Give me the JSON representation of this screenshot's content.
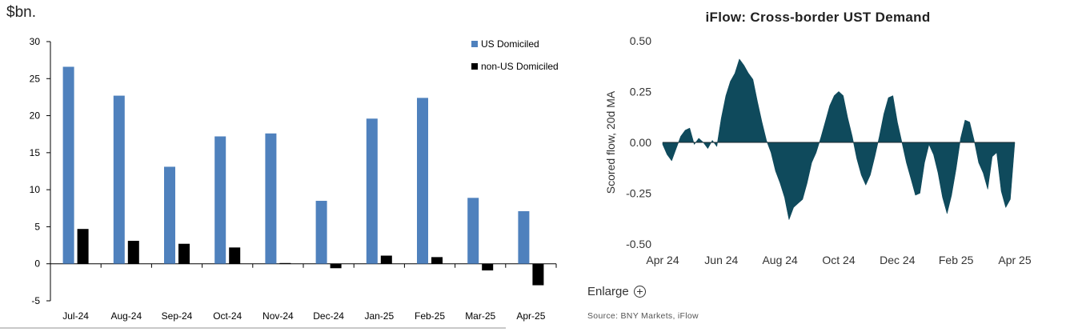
{
  "chart_data": [
    {
      "type": "bar",
      "unit_label": "$bn.",
      "categories": [
        "Jul-24",
        "Aug-24",
        "Sep-24",
        "Oct-24",
        "Nov-24",
        "Dec-24",
        "Jan-25",
        "Feb-25",
        "Mar-25",
        "Apr-25"
      ],
      "series": [
        {
          "name": "US Domiciled",
          "color": "#4f81bd",
          "values": [
            26.6,
            22.7,
            13.1,
            17.2,
            17.6,
            8.5,
            19.6,
            22.4,
            8.9,
            7.1
          ]
        },
        {
          "name": "non-US Domiciled",
          "color": "#000000",
          "values": [
            4.7,
            3.1,
            2.7,
            2.2,
            0.1,
            -0.6,
            1.1,
            0.9,
            -0.9,
            -2.9
          ]
        }
      ],
      "ylim": [
        -5,
        30
      ],
      "yticks": [
        "30",
        "25",
        "20",
        "15",
        "10",
        "5",
        "0",
        "-5"
      ],
      "legend_position": "top-right",
      "grid": false
    },
    {
      "type": "area",
      "title": "iFlow: Cross-border UST Demand",
      "ylabel": "Scored flow, 20d MA",
      "ylim": [
        -0.5,
        0.5
      ],
      "yticks": [
        "0.50",
        "0.25",
        "0.00",
        "-0.25",
        "-0.50"
      ],
      "xticks": [
        "Apr 24",
        "Jun 24",
        "Aug 24",
        "Oct 24",
        "Dec 24",
        "Feb 25",
        "Apr 25"
      ],
      "fill_color": "#0f4a5c",
      "grid": false,
      "points": [
        [
          "Apr 24",
          -0.01
        ],
        [
          "Apr 24",
          -0.06
        ],
        [
          "Apr 24",
          -0.09
        ],
        [
          "May 24",
          -0.03
        ],
        [
          "May 24",
          0.03
        ],
        [
          "May 24",
          0.06
        ],
        [
          "May 24",
          0.07
        ],
        [
          "May 24",
          -0.01
        ],
        [
          "May 24",
          0.02
        ],
        [
          "May 24",
          0.0
        ],
        [
          "May 24",
          -0.03
        ],
        [
          "May 24",
          0.01
        ],
        [
          "Jun 24",
          -0.02
        ],
        [
          "Jun 24",
          0.12
        ],
        [
          "Jun 24",
          0.23
        ],
        [
          "Jun 24",
          0.3
        ],
        [
          "Jun 24",
          0.34
        ],
        [
          "Jun 24",
          0.41
        ],
        [
          "Jun 24",
          0.38
        ],
        [
          "Jun 24",
          0.34
        ],
        [
          "Jul 24",
          0.31
        ],
        [
          "Jul 24",
          0.2
        ],
        [
          "Jul 24",
          0.1
        ],
        [
          "Jul 24",
          0.01
        ],
        [
          "Jul 24",
          -0.05
        ],
        [
          "Jul 24",
          -0.14
        ],
        [
          "Jul 24",
          -0.2
        ],
        [
          "Aug 24",
          -0.27
        ],
        [
          "Aug 24",
          -0.38
        ],
        [
          "Aug 24",
          -0.32
        ],
        [
          "Aug 24",
          -0.3
        ],
        [
          "Aug 24",
          -0.28
        ],
        [
          "Aug 24",
          -0.2
        ],
        [
          "Aug 24",
          -0.1
        ],
        [
          "Sep 24",
          -0.05
        ],
        [
          "Sep 24",
          0.02
        ],
        [
          "Sep 24",
          0.1
        ],
        [
          "Sep 24",
          0.18
        ],
        [
          "Sep 24",
          0.23
        ],
        [
          "Sep 24",
          0.25
        ],
        [
          "Sep 24",
          0.23
        ],
        [
          "Sep 24",
          0.12
        ],
        [
          "Oct 24",
          0.03
        ],
        [
          "Oct 24",
          -0.08
        ],
        [
          "Oct 24",
          -0.16
        ],
        [
          "Oct 24",
          -0.21
        ],
        [
          "Oct 24",
          -0.16
        ],
        [
          "Oct 24",
          -0.07
        ],
        [
          "Nov 24",
          0.03
        ],
        [
          "Nov 24",
          0.14
        ],
        [
          "Nov 24",
          0.22
        ],
        [
          "Nov 24",
          0.23
        ],
        [
          "Nov 24",
          0.1
        ],
        [
          "Nov 24",
          0.0
        ],
        [
          "Dec 24",
          -0.1
        ],
        [
          "Dec 24",
          -0.18
        ],
        [
          "Dec 24",
          -0.26
        ],
        [
          "Dec 24",
          -0.25
        ],
        [
          "Dec 24",
          -0.1
        ],
        [
          "Jan 25",
          -0.01
        ],
        [
          "Jan 25",
          -0.06
        ],
        [
          "Jan 25",
          -0.15
        ],
        [
          "Jan 25",
          -0.27
        ],
        [
          "Jan 25",
          -0.35
        ],
        [
          "Feb 25",
          -0.26
        ],
        [
          "Feb 25",
          -0.13
        ],
        [
          "Feb 25",
          0.02
        ],
        [
          "Feb 25",
          0.11
        ],
        [
          "Feb 25",
          0.1
        ],
        [
          "Feb 25",
          0.01
        ],
        [
          "Mar 25",
          -0.1
        ],
        [
          "Mar 25",
          -0.15
        ],
        [
          "Mar 25",
          -0.23
        ],
        [
          "Mar 25",
          -0.07
        ],
        [
          "Apr 25",
          -0.05
        ],
        [
          "Apr 25",
          -0.24
        ],
        [
          "Apr 25",
          -0.32
        ],
        [
          "Apr 25",
          -0.28
        ],
        [
          "Apr 25",
          0.0
        ]
      ]
    }
  ],
  "controls": {
    "enlarge_label": "Enlarge"
  },
  "source_note": "Source:  BNY Markets, iFlow"
}
